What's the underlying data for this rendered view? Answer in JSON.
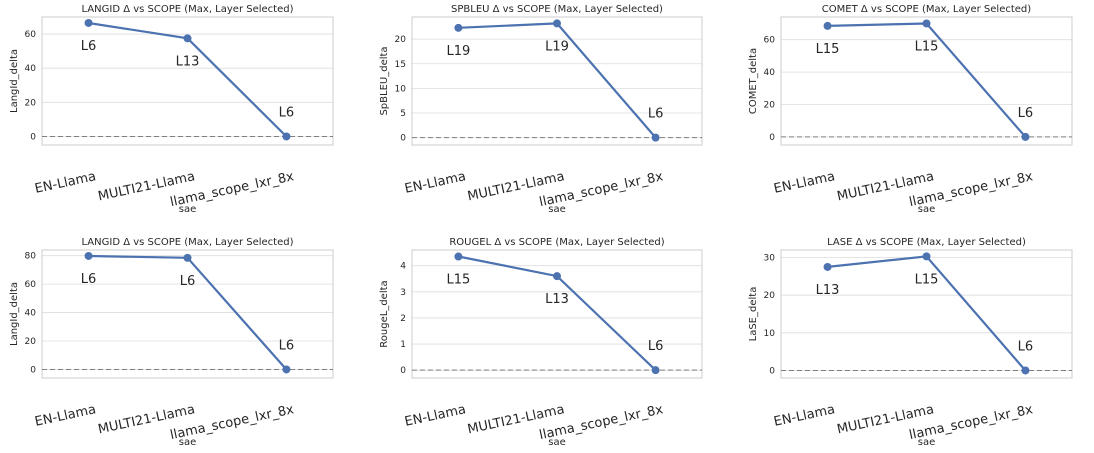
{
  "chart_data": [
    {
      "type": "line",
      "title": "LANGID Δ vs SCOPE (Max, Layer Selected)",
      "xlabel": "sae",
      "ylabel": "LangId_delta",
      "categories": [
        "EN-Llama",
        "MULTI21-Llama",
        "llama_scope_lxr_8x"
      ],
      "values": [
        66.5,
        57.5,
        0
      ],
      "point_labels": [
        "L6",
        "L13",
        "L6"
      ],
      "yticks": [
        0,
        20,
        40,
        60
      ],
      "ylim": [
        -5,
        70
      ],
      "reference_line": 0,
      "grid": true
    },
    {
      "type": "line",
      "title": "SPBLEU Δ vs SCOPE (Max, Layer Selected)",
      "xlabel": "sae",
      "ylabel": "SpBLEU_delta",
      "categories": [
        "EN-Llama",
        "MULTI21-Llama",
        "llama_scope_lxr_8x"
      ],
      "values": [
        22.3,
        23.2,
        0
      ],
      "point_labels": [
        "L19",
        "L19",
        "L6"
      ],
      "yticks": [
        0,
        5,
        10,
        15,
        20
      ],
      "ylim": [
        -1.5,
        24.5
      ],
      "reference_line": 0,
      "grid": true
    },
    {
      "type": "line",
      "title": "COMET Δ vs SCOPE (Max, Layer Selected)",
      "xlabel": "sae",
      "ylabel": "COMET_delta",
      "categories": [
        "EN-Llama",
        "MULTI21-Llama",
        "llama_scope_lxr_8x"
      ],
      "values": [
        68.5,
        70,
        0
      ],
      "point_labels": [
        "L15",
        "L15",
        "L6"
      ],
      "yticks": [
        0,
        20,
        40,
        60
      ],
      "ylim": [
        -5,
        74
      ],
      "reference_line": 0,
      "grid": true
    },
    {
      "type": "line",
      "title": "LANGID Δ vs SCOPE (Max, Layer Selected)",
      "xlabel": "sae",
      "ylabel": "LangId_delta",
      "categories": [
        "EN-Llama",
        "MULTI21-Llama",
        "llama_scope_lxr_8x"
      ],
      "values": [
        79.8,
        78.5,
        0
      ],
      "point_labels": [
        "L6",
        "L6",
        "L6"
      ],
      "yticks": [
        0,
        20,
        40,
        60,
        80
      ],
      "ylim": [
        -6,
        84
      ],
      "reference_line": 0,
      "grid": true
    },
    {
      "type": "line",
      "title": "ROUGEL Δ vs SCOPE (Max, Layer Selected)",
      "xlabel": "sae",
      "ylabel": "RougeL_delta",
      "categories": [
        "EN-Llama",
        "MULTI21-Llama",
        "llama_scope_lxr_8x"
      ],
      "values": [
        4.35,
        3.6,
        0
      ],
      "point_labels": [
        "L15",
        "L13",
        "L6"
      ],
      "yticks": [
        0,
        1,
        2,
        3,
        4
      ],
      "ylim": [
        -0.3,
        4.6
      ],
      "reference_line": 0,
      "grid": true
    },
    {
      "type": "line",
      "title": "LASE Δ vs SCOPE (Max, Layer Selected)",
      "xlabel": "sae",
      "ylabel": "LaSE_delta",
      "categories": [
        "EN-Llama",
        "MULTI21-Llama",
        "llama_scope_lxr_8x"
      ],
      "values": [
        27.5,
        30.3,
        0
      ],
      "point_labels": [
        "L13",
        "L15",
        "L6"
      ],
      "yticks": [
        0,
        10,
        20,
        30
      ],
      "ylim": [
        -2,
        32
      ],
      "reference_line": 0,
      "grid": true
    }
  ]
}
